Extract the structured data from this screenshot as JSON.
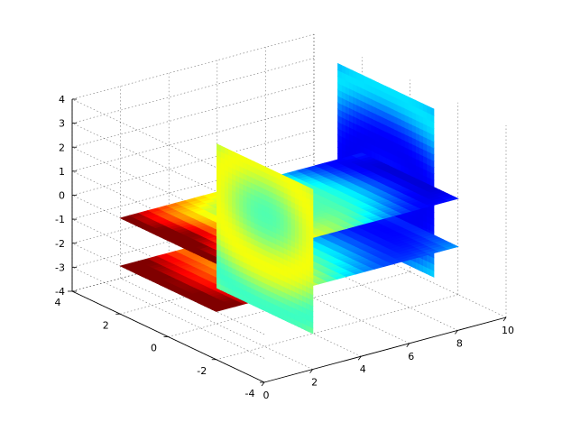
{
  "chart_data": {
    "type": "heatmap",
    "subtype": "3d-volume-slices",
    "title": "",
    "xlabel": "",
    "ylabel": "",
    "zlabel": "",
    "colormap": "jet",
    "xlim": [
      0,
      10
    ],
    "ylim": [
      -4,
      4
    ],
    "zlim": [
      -4,
      4
    ],
    "x_ticks": [
      "0",
      "2",
      "4",
      "6",
      "8",
      "10"
    ],
    "y_ticks": [
      "-4",
      "-2",
      "0",
      "2",
      "4"
    ],
    "z_ticks": [
      "-4",
      "-3",
      "-2",
      "-1",
      "0",
      "1",
      "2",
      "3",
      "4"
    ],
    "grid": true,
    "slices": [
      {
        "name": "slice-x-4",
        "axis": "x",
        "value": 4,
        "extent": {
          "y": [
            -2,
            2
          ],
          "z": [
            -4,
            2
          ]
        }
      },
      {
        "name": "slice-x-9",
        "axis": "x",
        "value": 9,
        "extent": {
          "y": [
            -2,
            2
          ],
          "z": [
            -3,
            4
          ]
        }
      },
      {
        "name": "slice-z-0",
        "axis": "z",
        "value": 0,
        "extent": {
          "x": [
            0,
            10
          ],
          "y": [
            -2,
            2
          ]
        }
      },
      {
        "name": "slice-z-neg2",
        "axis": "z",
        "value": -2,
        "extent": {
          "x": [
            0,
            10
          ],
          "y": [
            -2,
            2
          ]
        }
      }
    ]
  }
}
